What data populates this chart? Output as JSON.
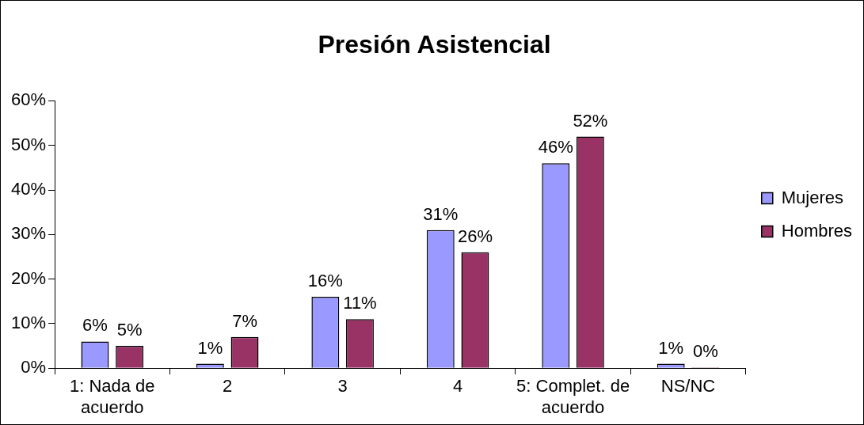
{
  "chart_data": {
    "type": "bar",
    "title": "Presión Asistencial",
    "categories": [
      "1: Nada de acuerdo",
      "2",
      "3",
      "4",
      "5: Complet. de acuerdo",
      "NS/NC"
    ],
    "series": [
      {
        "name": "Mujeres",
        "color": "#9999ff",
        "values": [
          6,
          1,
          16,
          31,
          46,
          1
        ],
        "value_labels": [
          "6%",
          "1%",
          "16%",
          "31%",
          "46%",
          "1%"
        ]
      },
      {
        "name": "Hombres",
        "color": "#993366",
        "values": [
          5,
          7,
          11,
          26,
          52,
          0
        ],
        "value_labels": [
          "5%",
          "7%",
          "11%",
          "26%",
          "52%",
          "0%"
        ]
      }
    ],
    "ylim": [
      0,
      60
    ],
    "yticks": [
      {
        "value": 0,
        "label": "0%"
      },
      {
        "value": 10,
        "label": "10%"
      },
      {
        "value": 20,
        "label": "20%"
      },
      {
        "value": 30,
        "label": "30%"
      },
      {
        "value": 40,
        "label": "40%"
      },
      {
        "value": 50,
        "label": "50%"
      },
      {
        "value": 60,
        "label": "60%"
      }
    ],
    "grid": false,
    "legend": "right"
  }
}
